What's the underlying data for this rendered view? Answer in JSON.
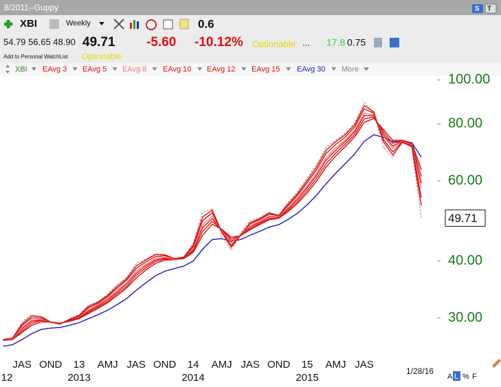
{
  "header": {
    "window_title": "8/2011--Guppy",
    "symbol": "XBI",
    "period": "Weekly",
    "setting": "0.6",
    "buttons": [
      "S",
      "T"
    ],
    "ohl": "54.79 56.65 48.90",
    "last": "49.71",
    "change": "-5.60",
    "change_pct": "-10.12%",
    "optionable": "Optionable",
    "ellipsis": "...",
    "metric_a": "17.8",
    "metric_b": "0.75",
    "watchlist": "Add to Personal WatchList",
    "optionable2": "Optionable",
    "more": "More"
  },
  "footer": {
    "scale_buttons": [
      "A",
      "L",
      "%",
      "F"
    ]
  },
  "chart_data": {
    "type": "line",
    "log_scale": true,
    "grid": false,
    "categories": [
      null,
      null,
      "JAS",
      null,
      null,
      "OND",
      null,
      null,
      "13",
      null,
      null,
      "AMJ",
      null,
      null,
      "JAS",
      null,
      null,
      "OND",
      null,
      null,
      "14",
      null,
      null,
      "AMJ",
      null,
      null,
      "JAS",
      null,
      null,
      "OND",
      null,
      null,
      "15",
      null,
      null,
      "AMJ",
      null,
      null,
      "JAS",
      null,
      null,
      null,
      null,
      null,
      null
    ],
    "year_labels": [
      "12",
      null,
      null,
      null,
      null,
      null,
      null,
      null,
      "2013",
      null,
      null,
      null,
      null,
      null,
      null,
      null,
      null,
      null,
      null,
      null,
      "2014",
      null,
      null,
      null,
      null,
      null,
      null,
      null,
      null,
      null,
      null,
      null,
      "2015",
      null,
      null,
      null,
      null,
      null,
      null,
      null,
      null,
      null,
      null,
      null,
      null
    ],
    "last_date": "1/28/16",
    "ylim": [
      25,
      104
    ],
    "yticks": [
      {
        "value": 30,
        "label": "30.00"
      },
      {
        "value": 40,
        "label": "40.00"
      },
      {
        "value": 60,
        "label": "60.00"
      },
      {
        "value": 80,
        "label": "80.00"
      },
      {
        "value": 100,
        "label": "100.00"
      }
    ],
    "series": [
      {
        "name": "XBI",
        "color": "#2e8b2e",
        "line_color": "#888888",
        "dashed": true,
        "values": [
          26.9,
          27.1,
          29.4,
          30.5,
          30.2,
          29.3,
          29.0,
          29.9,
          30.5,
          32.0,
          32.6,
          33.8,
          35.5,
          36.8,
          39.4,
          40.4,
          41.5,
          41.3,
          40.4,
          40.8,
          43.7,
          51.2,
          52.1,
          45.3,
          42.3,
          46.1,
          49.1,
          49.8,
          51.2,
          50.3,
          53.9,
          56.8,
          60.9,
          65.3,
          71.1,
          73.7,
          76.3,
          80.4,
          89.2,
          84.6,
          71.1,
          67.5,
          73.7,
          71.1,
          49.71
        ]
      },
      {
        "name": "EAvg 3",
        "color": "#e01010",
        "values": [
          26.9,
          27.1,
          29.1,
          30.3,
          30.2,
          29.4,
          29.1,
          29.8,
          30.4,
          31.8,
          32.5,
          33.6,
          35.2,
          36.6,
          39.0,
          40.2,
          41.3,
          41.3,
          40.5,
          40.8,
          43.3,
          50.0,
          51.8,
          46.3,
          42.9,
          45.6,
          48.6,
          49.6,
          51.0,
          50.4,
          53.4,
          56.3,
          60.2,
          64.5,
          70.1,
          73.2,
          75.8,
          79.7,
          87.8,
          85.1,
          73.2,
          68.4,
          72.9,
          71.4,
          53.0
        ]
      },
      {
        "name": "EAvg 5",
        "color": "#e01010",
        "values": [
          26.9,
          27.1,
          28.9,
          30.0,
          30.0,
          29.4,
          29.1,
          29.7,
          30.3,
          31.6,
          32.3,
          33.4,
          34.9,
          36.3,
          38.5,
          39.8,
          40.9,
          41.1,
          40.5,
          40.7,
          43.0,
          49.1,
          51.1,
          46.4,
          43.3,
          45.6,
          48.3,
          49.3,
          50.7,
          50.3,
          53.0,
          55.8,
          59.5,
          63.6,
          69.0,
          72.2,
          74.9,
          78.8,
          86.4,
          84.5,
          74.1,
          69.5,
          73.1,
          71.7,
          55.1
        ]
      },
      {
        "name": "EAvg 8",
        "color": "#ee7f7f",
        "values": [
          26.9,
          27.0,
          28.6,
          29.7,
          29.8,
          29.4,
          29.1,
          29.7,
          30.2,
          31.3,
          32.1,
          33.1,
          34.5,
          35.8,
          38.0,
          39.3,
          40.5,
          40.8,
          40.4,
          40.7,
          42.6,
          48.0,
          50.2,
          46.6,
          43.9,
          45.6,
          47.8,
          48.9,
          50.2,
          50.1,
          52.5,
          55.1,
          58.5,
          62.5,
          67.5,
          70.9,
          73.8,
          77.6,
          84.6,
          83.8,
          75.3,
          70.8,
          73.3,
          72.0,
          57.7
        ]
      },
      {
        "name": "EAvg 10",
        "color": "#e01010",
        "values": [
          26.8,
          27.0,
          28.4,
          29.5,
          29.7,
          29.4,
          29.2,
          29.6,
          30.1,
          31.1,
          31.9,
          32.9,
          34.2,
          35.6,
          37.6,
          39.0,
          40.2,
          40.6,
          40.4,
          40.6,
          42.4,
          47.4,
          49.6,
          46.7,
          44.2,
          45.5,
          47.6,
          48.7,
          50.0,
          50.0,
          52.2,
          54.7,
          58.0,
          61.8,
          66.7,
          70.1,
          73.2,
          76.9,
          83.5,
          83.4,
          76.0,
          71.6,
          73.4,
          72.2,
          59.3
        ]
      },
      {
        "name": "EAvg 12",
        "color": "#e01010",
        "values": [
          26.8,
          26.9,
          28.1,
          29.2,
          29.6,
          29.4,
          29.2,
          29.6,
          30.0,
          30.9,
          31.7,
          32.6,
          33.9,
          35.2,
          37.2,
          38.6,
          39.9,
          40.4,
          40.3,
          40.6,
          42.1,
          46.5,
          48.9,
          46.9,
          44.7,
          45.5,
          47.2,
          48.4,
          49.6,
          49.8,
          51.8,
          54.1,
          57.2,
          60.9,
          65.5,
          69.1,
          72.3,
          75.9,
          82.1,
          82.9,
          76.9,
          72.6,
          73.5,
          72.4,
          61.4
        ]
      },
      {
        "name": "EAvg 15",
        "color": "#c81010",
        "values": [
          26.8,
          26.9,
          27.9,
          28.9,
          29.4,
          29.4,
          29.2,
          29.5,
          29.9,
          30.7,
          31.5,
          32.4,
          33.6,
          34.9,
          36.7,
          38.2,
          39.5,
          40.2,
          40.3,
          40.5,
          41.8,
          45.6,
          48.2,
          47.0,
          45.1,
          45.5,
          46.9,
          48.1,
          49.3,
          49.7,
          51.4,
          53.6,
          56.5,
          60.0,
          64.4,
          68.1,
          71.4,
          75.0,
          80.7,
          82.3,
          77.8,
          73.7,
          73.7,
          72.7,
          63.5
        ]
      },
      {
        "name": "EAvg 30",
        "color": "#1a1ab8",
        "values": [
          26.0,
          26.2,
          26.9,
          27.7,
          28.3,
          28.5,
          28.6,
          28.9,
          29.3,
          29.9,
          30.5,
          31.2,
          32.1,
          33.1,
          34.5,
          35.8,
          37.1,
          38.0,
          38.5,
          39.0,
          40.0,
          42.5,
          44.6,
          44.8,
          44.2,
          44.6,
          45.6,
          46.5,
          47.5,
          48.1,
          49.4,
          51.0,
          53.2,
          55.9,
          59.2,
          62.4,
          65.5,
          68.8,
          73.3,
          75.8,
          74.8,
          73.2,
          73.3,
          72.8,
          67.7
        ]
      }
    ]
  }
}
